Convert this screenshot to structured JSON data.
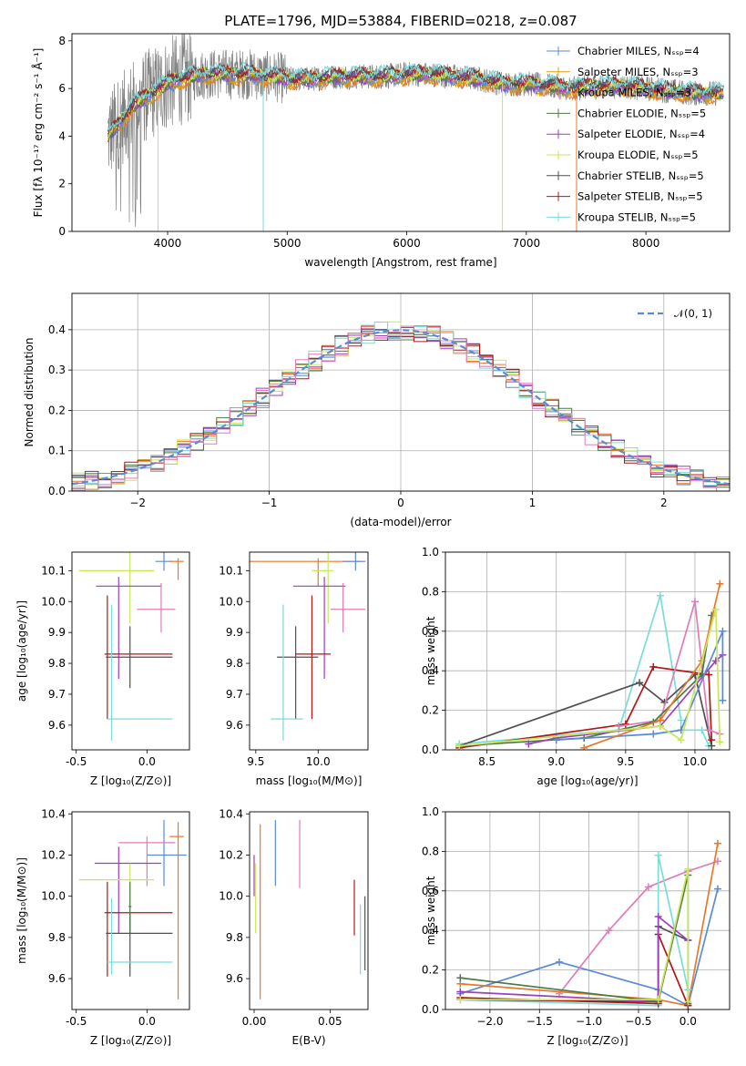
{
  "figure": {
    "title": "PLATE=1796, MJD=53884, FIBERID=0218, z=0.087"
  },
  "colors": {
    "chabrier_miles": "#5b8ad8",
    "salpeter_miles": "#e0a000",
    "kroupa_miles": "#e8782a",
    "chabrier_elodie": "#4a7a45",
    "salpeter_elodie": "#9b3fc0",
    "kroupa_elodie": "#c8e85a",
    "chabrier_stelib": "#505050",
    "salpeter_stelib": "#b01818",
    "kroupa_stelib": "#7adcdc",
    "pink": "#e07cb8",
    "normal_curve": "#5b8ad8"
  },
  "chart_data": [
    {
      "id": "spectrum",
      "type": "line",
      "title": "PLATE=1796, MJD=53884, FIBERID=0218, z=0.087",
      "xlabel": "wavelength [Angstrom, rest frame]",
      "ylabel": "Flux [fλ 10⁻¹⁷ erg cm⁻² s⁻¹ Å⁻¹]",
      "xlim": [
        3200,
        8700
      ],
      "ylim": [
        0,
        8.3
      ],
      "xticks": [
        4000,
        5000,
        6000,
        7000,
        8000
      ],
      "yticks": [
        0,
        2,
        4,
        6,
        8
      ],
      "grid": false,
      "legend_position": "top-right",
      "legend": [
        "Chabrier MILES, Nₛₛₚ=4",
        "Salpeter MILES, Nₛₛₚ=3",
        "Kroupa MILES, Nₛₛₚ=3",
        "Chabrier ELODIE, Nₛₛₚ=5",
        "Salpeter ELODIE, Nₛₛₚ=4",
        "Kroupa ELODIE, Nₛₛₚ=5",
        "Chabrier STELIB, Nₛₛₚ=5",
        "Salpeter STELIB, Nₛₛₚ=5",
        "Kroupa STELIB, Nₛₛₚ=5"
      ],
      "continuum": {
        "x": [
          3500,
          3600,
          3700,
          3800,
          3900,
          4000,
          4100,
          4200,
          4300,
          4400,
          4500,
          4600,
          4700,
          4800,
          4900,
          5000,
          5200,
          5400,
          5600,
          5800,
          6000,
          6200,
          6400,
          6600,
          6800,
          7000,
          7200,
          7400,
          7600,
          7800,
          8000,
          8200,
          8400,
          8600
        ],
        "y": [
          4.0,
          4.6,
          5.2,
          5.6,
          5.9,
          6.2,
          6.4,
          6.5,
          6.6,
          6.6,
          6.6,
          6.6,
          6.6,
          6.5,
          6.5,
          6.4,
          6.4,
          6.5,
          6.5,
          6.5,
          6.6,
          6.6,
          6.5,
          6.4,
          6.2,
          6.2,
          6.1,
          6.0,
          6.1,
          6.1,
          6.0,
          5.9,
          5.8,
          5.8
        ]
      }
    },
    {
      "id": "residuals",
      "type": "histogram",
      "xlabel": "(data-model)/error",
      "ylabel": "Normed distribution",
      "xlim": [
        -2.5,
        2.5
      ],
      "ylim": [
        0,
        0.49
      ],
      "xticks": [
        -2,
        -1,
        0,
        1,
        2
      ],
      "yticks": [
        0.0,
        0.1,
        0.2,
        0.3,
        0.4
      ],
      "grid": true,
      "legend_position": "top-right",
      "legend": [
        "𝒩(0, 1)"
      ],
      "bin_width": 0.1
    },
    {
      "id": "age_vs_Z",
      "type": "errorbar",
      "xlabel": "Z [log₁₀(Z/Z⊙)]",
      "ylabel": "age  [log₁₀(age/yr)]",
      "xlim": [
        -0.53,
        0.3
      ],
      "ylim": [
        9.52,
        10.16
      ],
      "xticks": [
        -0.5,
        0.0
      ],
      "yticks": [
        9.6,
        9.7,
        9.8,
        9.9,
        10.0,
        10.1
      ],
      "points": [
        {
          "k": "chabrier_miles",
          "x": 0.12,
          "xl": 0.06,
          "xh": 0.18,
          "y": 10.13,
          "yl": 10.1,
          "yh": 10.16
        },
        {
          "k": "kroupa_miles",
          "x": 0.22,
          "xl": 0.16,
          "xh": 0.26,
          "y": 10.13,
          "yl": 10.07,
          "yh": 10.14
        },
        {
          "k": "kroupa_elodie",
          "x": -0.12,
          "xl": -0.48,
          "xh": 0.05,
          "y": 10.1,
          "yl": 9.93,
          "yh": 10.16
        },
        {
          "k": "salpeter_elodie",
          "x": -0.2,
          "xl": -0.36,
          "xh": 0.1,
          "y": 10.05,
          "yl": 9.75,
          "yh": 10.08
        },
        {
          "k": "pink",
          "x": 0.1,
          "xl": -0.07,
          "xh": 0.2,
          "y": 9.975,
          "yl": 9.9,
          "yh": 10.06
        },
        {
          "k": "salpeter_stelib",
          "x": -0.28,
          "xl": -0.3,
          "xh": 0.18,
          "y": 9.83,
          "yl": 9.62,
          "yh": 10.02
        },
        {
          "k": "chabrier_stelib",
          "x": -0.12,
          "xl": -0.29,
          "xh": 0.18,
          "y": 9.82,
          "yl": 9.72,
          "yh": 9.92
        },
        {
          "k": "kroupa_stelib",
          "x": -0.25,
          "xl": -0.28,
          "xh": 0.18,
          "y": 9.62,
          "yl": 9.55,
          "yh": 9.99
        }
      ]
    },
    {
      "id": "age_vs_mass",
      "type": "errorbar",
      "xlabel": "mass [log₁₀(M/M⊙)]",
      "ylabel": "",
      "xlim": [
        9.45,
        10.4
      ],
      "ylim": [
        9.52,
        10.16
      ],
      "xticks": [
        9.5,
        10.0
      ],
      "yticks": [
        9.6,
        9.7,
        9.8,
        9.9,
        10.0,
        10.1
      ],
      "points": [
        {
          "k": "kroupa_miles",
          "x": 10.0,
          "xl": 9.45,
          "xh": 10.35,
          "y": 10.13,
          "yl": 10.05,
          "yh": 10.14
        },
        {
          "k": "chabrier_miles",
          "x": 10.3,
          "xl": 10.2,
          "xh": 10.38,
          "y": 10.13,
          "yl": 10.1,
          "yh": 10.16
        },
        {
          "k": "kroupa_elodie",
          "x": 10.08,
          "xl": 9.95,
          "xh": 10.12,
          "y": 10.1,
          "yl": 9.93,
          "yh": 10.16
        },
        {
          "k": "salpeter_elodie",
          "x": 10.05,
          "xl": 9.8,
          "xh": 10.22,
          "y": 10.05,
          "yl": 9.75,
          "yh": 10.08
        },
        {
          "k": "pink",
          "x": 10.2,
          "xl": 10.1,
          "xh": 10.38,
          "y": 9.975,
          "yl": 9.9,
          "yh": 10.06
        },
        {
          "k": "salpeter_stelib",
          "x": 9.95,
          "xl": 9.82,
          "xh": 10.1,
          "y": 9.83,
          "yl": 9.62,
          "yh": 10.02
        },
        {
          "k": "chabrier_stelib",
          "x": 9.82,
          "xl": 9.67,
          "xh": 10.0,
          "y": 9.82,
          "yl": 9.62,
          "yh": 9.92
        },
        {
          "k": "kroupa_stelib",
          "x": 9.72,
          "xl": 9.62,
          "xh": 9.88,
          "y": 9.62,
          "yl": 9.55,
          "yh": 9.99
        }
      ]
    },
    {
      "id": "massweight_vs_age",
      "type": "line",
      "xlabel": "age  [log₁₀(age/yr)]",
      "ylabel": "mass weight",
      "xlim": [
        8.2,
        10.25
      ],
      "ylim": [
        0,
        1.0
      ],
      "xticks": [
        8.5,
        9.0,
        9.5,
        10.0
      ],
      "yticks": [
        0.0,
        0.2,
        0.4,
        0.6,
        0.8,
        1.0
      ],
      "grid": true,
      "series": [
        {
          "k": "kroupa_stelib",
          "x": [
            8.3,
            9.45,
            9.75,
            9.9,
            9.9,
            10.05,
            10.1
          ],
          "y": [
            0.03,
            0.1,
            0.78,
            0.15,
            0.1,
            0.1,
            0.02
          ]
        },
        {
          "k": "chabrier_stelib",
          "x": [
            8.3,
            9.6,
            9.78,
            10.0,
            10.12
          ],
          "y": [
            0.02,
            0.34,
            0.24,
            0.38,
            0.02
          ]
        },
        {
          "k": "salpeter_stelib",
          "x": [
            8.3,
            9.5,
            9.7,
            10.1,
            10.12
          ],
          "y": [
            0.01,
            0.13,
            0.42,
            0.38,
            0.05
          ]
        },
        {
          "k": "pink",
          "x": [
            9.45,
            9.75,
            10.0,
            10.1,
            10.18
          ],
          "y": [
            0.12,
            0.15,
            0.75,
            0.1,
            0.08
          ]
        },
        {
          "k": "chabrier_elodie",
          "x": [
            8.3,
            9.2,
            9.7,
            10.05,
            10.12
          ],
          "y": [
            0.02,
            0.06,
            0.14,
            0.38,
            0.68
          ]
        },
        {
          "k": "salpeter_elodie",
          "x": [
            8.8,
            9.0,
            9.75,
            10.15,
            10.2
          ],
          "y": [
            0.03,
            0.06,
            0.12,
            0.45,
            0.48
          ]
        },
        {
          "k": "chabrier_miles",
          "x": [
            9.0,
            9.7,
            9.9,
            10.2,
            10.2
          ],
          "y": [
            0.05,
            0.08,
            0.1,
            0.6,
            0.25
          ]
        },
        {
          "k": "kroupa_miles",
          "x": [
            9.2,
            9.75,
            10.05,
            10.18
          ],
          "y": [
            0.01,
            0.15,
            0.45,
            0.84
          ]
        },
        {
          "k": "kroupa_elodie",
          "x": [
            8.3,
            9.75,
            9.9,
            10.15,
            10.18
          ],
          "y": [
            0.02,
            0.12,
            0.05,
            0.71,
            0.04
          ]
        }
      ]
    },
    {
      "id": "mass_vs_Z",
      "type": "errorbar",
      "xlabel": "Z [log₁₀(Z/Z⊙)]",
      "ylabel": "mass [log₁₀(M/M⊙)]",
      "xlim": [
        -0.53,
        0.3
      ],
      "ylim": [
        9.45,
        10.41
      ],
      "xticks": [
        -0.5,
        0.0
      ],
      "yticks": [
        9.6,
        9.8,
        10.0,
        10.2,
        10.4
      ],
      "points": [
        {
          "k": "chabrier_miles",
          "x": 0.12,
          "xl": 0.0,
          "xh": 0.28,
          "y": 10.2,
          "yl": 10.05,
          "yh": 10.37
        },
        {
          "k": "kroupa_miles",
          "x": 0.22,
          "xl": 0.16,
          "xh": 0.26,
          "y": 10.29,
          "yl": 9.5,
          "yh": 10.36
        },
        {
          "k": "pink",
          "x": 0.0,
          "xl": -0.2,
          "xh": 0.2,
          "y": 10.26,
          "yl": 10.05,
          "yh": 10.29
        },
        {
          "k": "salpeter_elodie",
          "x": -0.2,
          "xl": -0.37,
          "xh": 0.1,
          "y": 10.16,
          "yl": 9.82,
          "yh": 10.24
        },
        {
          "k": "kroupa_elodie",
          "x": -0.12,
          "xl": -0.48,
          "xh": 0.05,
          "y": 10.08,
          "yl": 9.83,
          "yh": 10.16
        },
        {
          "k": "salpeter_stelib",
          "x": -0.28,
          "xl": -0.3,
          "xh": 0.18,
          "y": 9.92,
          "yl": 9.61,
          "yh": 10.07
        },
        {
          "k": "chabrier_stelib",
          "x": -0.12,
          "xl": -0.29,
          "xh": 0.18,
          "y": 9.82,
          "yl": 9.61,
          "yh": 9.92
        },
        {
          "k": "kroupa_stelib",
          "x": -0.25,
          "xl": -0.28,
          "xh": 0.18,
          "y": 9.68,
          "yl": 9.62,
          "yh": 9.99
        },
        {
          "k": "chabrier_elodie",
          "x": -0.12,
          "xl": -0.13,
          "xh": -0.11,
          "y": 9.95,
          "yl": 9.82,
          "yh": 10.07
        }
      ]
    },
    {
      "id": "mass_vs_EBV",
      "type": "errorbar",
      "xlabel": "E(B-V)",
      "ylabel": "",
      "xlim": [
        -0.003,
        0.075
      ],
      "ylim": [
        9.45,
        10.41
      ],
      "xticks": [
        0.0,
        0.05
      ],
      "yticks": [
        9.6,
        9.8,
        10.0,
        10.2,
        10.4
      ],
      "points": [
        {
          "k": "salpeter_elodie",
          "x": 0.0,
          "xl": 0.0,
          "xh": 0.0,
          "y": 10.15,
          "yl": 10.0,
          "yh": 10.2
        },
        {
          "k": "kroupa_elodie",
          "x": 0.001,
          "xl": 0.001,
          "xh": 0.001,
          "y": 10.0,
          "yl": 9.82,
          "yh": 10.16
        },
        {
          "k": "kroupa_miles",
          "x": 0.004,
          "xl": 0.004,
          "xh": 0.004,
          "y": 10.0,
          "yl": 9.5,
          "yh": 10.35
        },
        {
          "k": "chabrier_miles",
          "x": 0.014,
          "xl": 0.014,
          "xh": 0.014,
          "y": 10.2,
          "yl": 10.05,
          "yh": 10.37
        },
        {
          "k": "pink",
          "x": 0.03,
          "xl": 0.03,
          "xh": 0.03,
          "y": 10.2,
          "yl": 10.04,
          "yh": 10.37
        },
        {
          "k": "salpeter_stelib",
          "x": 0.066,
          "xl": 0.066,
          "xh": 0.066,
          "y": 9.95,
          "yl": 9.81,
          "yh": 10.08
        },
        {
          "k": "kroupa_stelib",
          "x": 0.07,
          "xl": 0.07,
          "xh": 0.07,
          "y": 9.8,
          "yl": 9.62,
          "yh": 9.96
        },
        {
          "k": "chabrier_stelib",
          "x": 0.073,
          "xl": 0.073,
          "xh": 0.073,
          "y": 9.8,
          "yl": 9.64,
          "yh": 10.0
        }
      ]
    },
    {
      "id": "massweight_vs_Z",
      "type": "line",
      "xlabel": "Z [log₁₀(Z/Z⊙)]",
      "ylabel": "mass weight",
      "xlim": [
        -2.45,
        0.42
      ],
      "ylim": [
        0,
        1.0
      ],
      "xticks": [
        -2.0,
        -1.5,
        -1.0,
        -0.5,
        0.0
      ],
      "yticks": [
        0.0,
        0.2,
        0.4,
        0.6,
        0.8,
        1.0
      ],
      "grid": true,
      "series": [
        {
          "k": "chabrier_miles",
          "x": [
            -2.3,
            -1.3,
            -0.3,
            0.0,
            0.3
          ],
          "y": [
            0.08,
            0.24,
            0.1,
            0.02,
            0.61
          ]
        },
        {
          "k": "pink",
          "x": [
            -1.3,
            -0.8,
            -0.4,
            0.0,
            0.3
          ],
          "y": [
            0.08,
            0.4,
            0.62,
            0.7,
            0.75
          ]
        },
        {
          "k": "kroupa_miles",
          "x": [
            -2.3,
            -0.3,
            0.0,
            0.3
          ],
          "y": [
            0.13,
            0.05,
            0.02,
            0.84
          ]
        },
        {
          "k": "kroupa_stelib",
          "x": [
            -2.3,
            -0.3,
            -0.3,
            0.0
          ],
          "y": [
            0.05,
            0.02,
            0.78,
            0.1
          ]
        },
        {
          "k": "chabrier_stelib",
          "x": [
            -2.3,
            -0.3,
            -0.3,
            0.0
          ],
          "y": [
            0.05,
            0.04,
            0.42,
            0.35
          ]
        },
        {
          "k": "salpeter_stelib",
          "x": [
            -2.3,
            -0.3,
            -0.3,
            0.0
          ],
          "y": [
            0.06,
            0.03,
            0.38,
            0.02
          ]
        },
        {
          "k": "salpeter_elodie",
          "x": [
            -2.3,
            -0.3,
            -0.3,
            0.0
          ],
          "y": [
            0.09,
            0.04,
            0.47,
            0.35
          ]
        },
        {
          "k": "chabrier_elodie",
          "x": [
            -2.3,
            -0.3,
            0.0,
            0.0
          ],
          "y": [
            0.16,
            0.04,
            0.68,
            0.03
          ]
        },
        {
          "k": "kroupa_elodie",
          "x": [
            -2.3,
            -0.3,
            0.0,
            0.0
          ],
          "y": [
            0.05,
            0.05,
            0.71,
            0.04
          ]
        }
      ]
    }
  ]
}
